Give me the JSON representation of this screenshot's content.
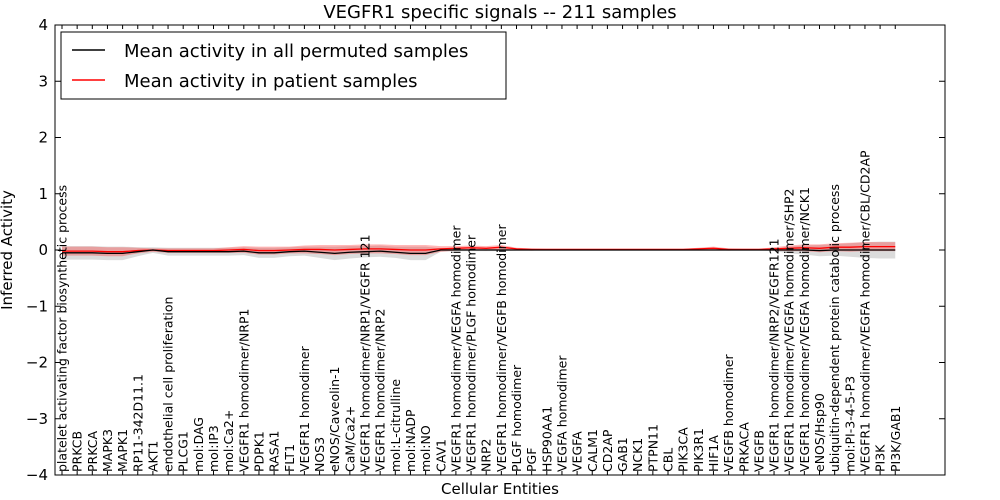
{
  "chart_data": {
    "type": "line",
    "title": "VEGFR1 specific signals -- 211 samples",
    "xlabel": "Cellular Entities",
    "ylabel": "Inferred Activity",
    "ylim": [
      -4,
      4
    ],
    "yticks": [
      4,
      3,
      2,
      1,
      0,
      -1,
      -2,
      -3,
      -4
    ],
    "ytick_labels": [
      "4",
      "3",
      "2",
      "1",
      "0",
      "−1",
      "−2",
      "−3",
      "−4"
    ],
    "legend_position": "top-left",
    "categories": [
      "platelet activating factor biosynthetic process",
      "PRKCB",
      "PRKCA",
      "MAPK3",
      "MAPK1",
      "RP11-342D11.1",
      "AKT1",
      "endothelial cell proliferation",
      "PLCG1",
      "mol:DAG",
      "mol:IP3",
      "mol:Ca2+",
      "VEGFR1 homodimer/NRP1",
      "PDPK1",
      "RASA1",
      "FLT1",
      "VEGFR1 homodimer",
      "NOS3",
      "eNOS/Caveolin-1",
      "CaM/Ca2+",
      "VEGFR1 homodimer/NRP1/VEGFR 121",
      "VEGFR1 homodimer/NRP2",
      "mol:L-citrulline",
      "mol:NADP",
      "mol:NO",
      "CAV1",
      "VEGFR1 homodimer/VEGFA homodimer",
      "VEGFR1 homodimer/PLGF homodimer",
      "NRP2",
      "VEGFR1 homodimer/VEGFB homodimer",
      "PLGF homodimer",
      "PGF",
      "HSP90AA1",
      "VEGFA homodimer",
      "VEGFA",
      "CALM1",
      "CD2AP",
      "GAB1",
      "NCK1",
      "PTPN11",
      "CBL",
      "PIK3CA",
      "PIK3R1",
      "HIF1A",
      "VEGFB homodimer",
      "PRKACA",
      "VEGFB",
      "VEGFR1 homodimer/NRP2/VEGFR121",
      "VEGFR1 homodimer/VEGFA homodimer/SHP2",
      "VEGFR1 homodimer/VEGFA homodimer/NCK1",
      "eNOS/Hsp90",
      "ubiquitin-dependent protein catabolic process",
      "mol:PI-3-4-5-P3",
      "VEGFR1 homodimer/VEGFA homodimer/CBL/CD2AP",
      "PI3K",
      "PI3K/GAB1"
    ],
    "series": [
      {
        "name": "Mean activity in all permuted samples",
        "color": "#000000",
        "values": [
          -0.05,
          -0.05,
          -0.05,
          -0.06,
          -0.06,
          -0.03,
          0.0,
          -0.03,
          -0.03,
          -0.03,
          -0.03,
          -0.03,
          -0.02,
          -0.05,
          -0.05,
          -0.03,
          -0.02,
          -0.04,
          -0.06,
          -0.04,
          -0.03,
          -0.02,
          -0.04,
          -0.06,
          -0.06,
          0.0,
          0.0,
          0.0,
          0.0,
          0.0,
          0.0,
          0.0,
          0.0,
          0.0,
          0.0,
          0.0,
          0.0,
          0.0,
          0.0,
          0.0,
          0.0,
          0.0,
          0.0,
          0.0,
          0.0,
          0.0,
          0.0,
          0.0,
          0.0,
          0.0,
          -0.01,
          0.0,
          0.0,
          0.0,
          0.0,
          0.0
        ],
        "band": [
          0.12,
          0.12,
          0.12,
          0.12,
          0.12,
          0.08,
          0.05,
          0.07,
          0.07,
          0.07,
          0.07,
          0.07,
          0.07,
          0.09,
          0.09,
          0.08,
          0.08,
          0.1,
          0.12,
          0.11,
          0.1,
          0.1,
          0.1,
          0.12,
          0.12,
          0.03,
          0.02,
          0.02,
          0.02,
          0.02,
          0.01,
          0.01,
          0.01,
          0.01,
          0.01,
          0.01,
          0.01,
          0.01,
          0.01,
          0.01,
          0.01,
          0.01,
          0.01,
          0.01,
          0.01,
          0.01,
          0.01,
          0.02,
          0.06,
          0.08,
          0.1,
          0.1,
          0.12,
          0.14,
          0.15,
          0.15
        ]
      },
      {
        "name": "Mean activity in patient samples",
        "color": "#ff0000",
        "values": [
          -0.02,
          -0.02,
          -0.02,
          -0.03,
          -0.03,
          -0.01,
          0.0,
          -0.01,
          -0.01,
          -0.01,
          -0.01,
          0.0,
          0.01,
          -0.01,
          -0.01,
          0.0,
          0.01,
          0.01,
          0.0,
          0.01,
          0.02,
          0.02,
          0.01,
          0.0,
          0.0,
          0.02,
          0.03,
          0.04,
          0.03,
          0.05,
          0.02,
          0.01,
          0.01,
          0.01,
          0.01,
          0.01,
          0.01,
          0.01,
          0.01,
          0.01,
          0.01,
          0.01,
          0.02,
          0.03,
          0.01,
          0.01,
          0.01,
          0.02,
          0.03,
          0.04,
          0.03,
          0.05,
          0.05,
          0.06,
          0.06,
          0.06
        ],
        "band": [
          0.08,
          0.08,
          0.08,
          0.08,
          0.08,
          0.05,
          0.03,
          0.04,
          0.04,
          0.04,
          0.04,
          0.05,
          0.06,
          0.07,
          0.07,
          0.06,
          0.07,
          0.08,
          0.09,
          0.08,
          0.08,
          0.08,
          0.08,
          0.09,
          0.09,
          0.05,
          0.04,
          0.04,
          0.04,
          0.04,
          0.02,
          0.02,
          0.01,
          0.01,
          0.01,
          0.01,
          0.01,
          0.01,
          0.01,
          0.01,
          0.01,
          0.01,
          0.02,
          0.03,
          0.02,
          0.01,
          0.01,
          0.03,
          0.05,
          0.06,
          0.07,
          0.07,
          0.08,
          0.08,
          0.08,
          0.08
        ]
      }
    ]
  }
}
